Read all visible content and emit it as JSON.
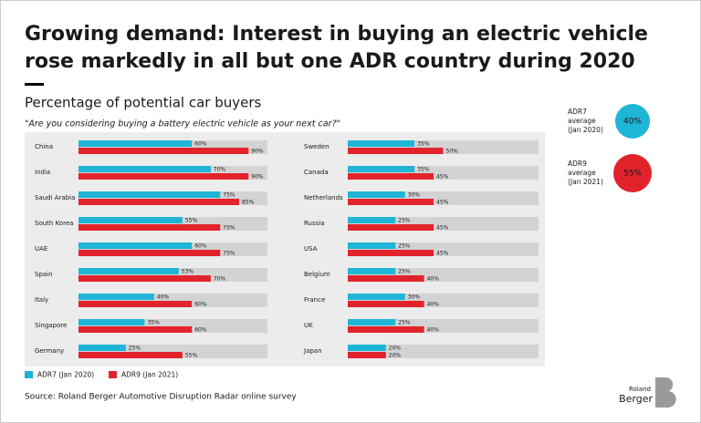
{
  "title": [
    "Growing demand: Interest in buying an electric vehicle",
    "rose markedly in all but one ADR country during 2020"
  ],
  "subtitle": "Percentage of potential car buyers",
  "question": "\"Are you considering buying a battery electric vehicle as your next car?\"",
  "source": "Source: Roland Berger Automotive Disruption Radar online survey",
  "brand": [
    "Roland",
    "Berger"
  ],
  "averages": [
    {
      "lines": [
        "ADR7",
        "average",
        "(Jan 2020)"
      ],
      "value": 40,
      "value_label": "40%",
      "color": "#1fb5d6"
    },
    {
      "lines": [
        "ADR9",
        "average",
        "(Jan 2021)"
      ],
      "value": 55,
      "value_label": "55%",
      "color": "#e2232b"
    }
  ],
  "chart_data": [
    {
      "type": "bar",
      "orientation": "horizontal",
      "xlim": [
        0,
        100
      ],
      "categories": [
        "China",
        "India",
        "Saudi Arabia",
        "South Korea",
        "UAE",
        "Spain",
        "Italy",
        "Singapore",
        "Germany"
      ],
      "series": [
        {
          "name": "ADR7 (Jan 2020)",
          "color": "#1fb5d6",
          "values": [
            60,
            70,
            75,
            55,
            60,
            53,
            40,
            35,
            25
          ],
          "value_labels": [
            "60%",
            "70%",
            "75%",
            "55%",
            "60%",
            "53%",
            "40%",
            "35%",
            "25%"
          ]
        },
        {
          "name": "ADR9 (Jan 2021)",
          "color": "#e2232b",
          "values": [
            90,
            90,
            85,
            75,
            75,
            70,
            60,
            60,
            55
          ],
          "value_labels": [
            "90%",
            "90%",
            "85%",
            "75%",
            "75%",
            "70%",
            "60%",
            "60%",
            "55%"
          ]
        }
      ]
    },
    {
      "type": "bar",
      "orientation": "horizontal",
      "xlim": [
        0,
        100
      ],
      "categories": [
        "Sweden",
        "Canada",
        "Netherlands",
        "Russia",
        "USA",
        "Belgium",
        "France",
        "UK",
        "Japan"
      ],
      "series": [
        {
          "color": "#1fb5d6",
          "values": [
            35,
            35,
            30,
            25,
            25,
            25,
            30,
            25,
            20
          ],
          "value_labels": [
            "35%",
            "35%",
            "30%",
            "25%",
            "25%",
            "25%",
            "30%",
            "25%",
            "20%"
          ]
        },
        {
          "color": "#e2232b",
          "values": [
            50,
            45,
            45,
            45,
            45,
            40,
            40,
            40,
            20
          ],
          "value_labels": [
            "50%",
            "45%",
            "45%",
            "45%",
            "45%",
            "40%",
            "40%",
            "40%",
            "20%"
          ]
        }
      ]
    }
  ]
}
